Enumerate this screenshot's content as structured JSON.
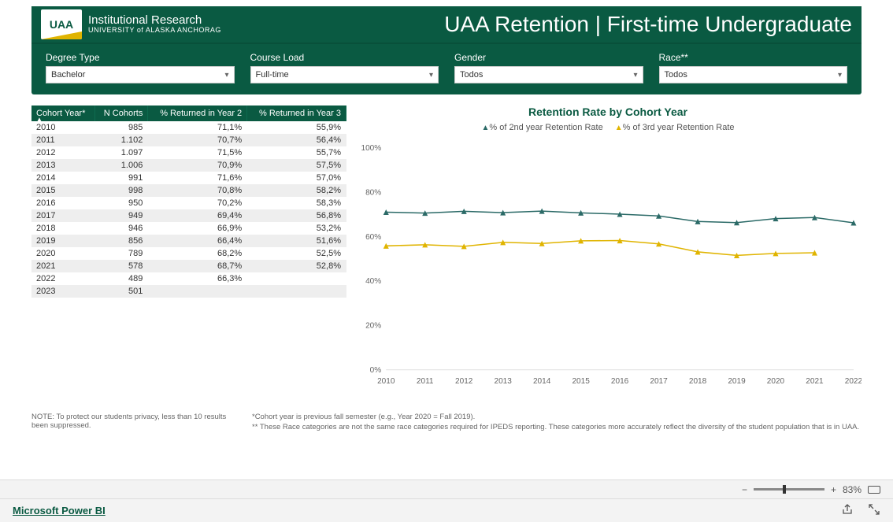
{
  "header": {
    "logo_text": "UAA",
    "logo_line1": "Institutional Research",
    "logo_line2": "UNIVERSITY of ALASKA ANCHORAG",
    "page_title": "UAA Retention | First-time Undergraduate"
  },
  "filters": {
    "degree_type": {
      "label": "Degree Type",
      "value": "Bachelor"
    },
    "course_load": {
      "label": "Course Load",
      "value": "Full-time"
    },
    "gender": {
      "label": "Gender",
      "value": "Todos"
    },
    "race": {
      "label": "Race**",
      "value": "Todos"
    }
  },
  "table": {
    "columns": [
      "Cohort Year*",
      "N Cohorts",
      "% Returned in Year 2",
      "% Returned in Year 3"
    ],
    "rows": [
      [
        "2010",
        "985",
        "71,1%",
        "55,9%"
      ],
      [
        "2011",
        "1.102",
        "70,7%",
        "56,4%"
      ],
      [
        "2012",
        "1.097",
        "71,5%",
        "55,7%"
      ],
      [
        "2013",
        "1.006",
        "70,9%",
        "57,5%"
      ],
      [
        "2014",
        "991",
        "71,6%",
        "57,0%"
      ],
      [
        "2015",
        "998",
        "70,8%",
        "58,2%"
      ],
      [
        "2016",
        "950",
        "70,2%",
        "58,3%"
      ],
      [
        "2017",
        "949",
        "69,4%",
        "56,8%"
      ],
      [
        "2018",
        "946",
        "66,9%",
        "53,2%"
      ],
      [
        "2019",
        "856",
        "66,4%",
        "51,6%"
      ],
      [
        "2020",
        "789",
        "68,2%",
        "52,5%"
      ],
      [
        "2021",
        "578",
        "68,7%",
        "52,8%"
      ],
      [
        "2022",
        "489",
        "66,3%",
        ""
      ],
      [
        "2023",
        "501",
        "",
        ""
      ]
    ]
  },
  "chart": {
    "title": "Retention Rate by Cohort Year",
    "legend": {
      "series1": "% of 2nd year Retention Rate",
      "series2": "% of 3rd year Retention Rate"
    },
    "ylim": [
      0,
      100
    ],
    "yticks": [
      0,
      20,
      40,
      60,
      80,
      100
    ],
    "ytick_labels": [
      "0%",
      "20%",
      "40%",
      "60%",
      "80%",
      "100%"
    ],
    "xticks": [
      "2010",
      "2011",
      "2012",
      "2013",
      "2014",
      "2015",
      "2016",
      "2017",
      "2018",
      "2019",
      "2020",
      "2021",
      "2022"
    ],
    "series": [
      {
        "name": "2nd year",
        "color": "#2b6a67",
        "values": [
          71.1,
          70.7,
          71.5,
          70.9,
          71.6,
          70.8,
          70.2,
          69.4,
          66.9,
          66.4,
          68.2,
          68.7,
          66.3
        ]
      },
      {
        "name": "3rd year",
        "color": "#e0b400",
        "values": [
          55.9,
          56.4,
          55.7,
          57.5,
          57.0,
          58.2,
          58.3,
          56.8,
          53.2,
          51.6,
          52.5,
          52.8
        ]
      }
    ],
    "marker": "triangle",
    "line_width": 1.5,
    "background_color": "#ffffff"
  },
  "footnotes": {
    "privacy": "NOTE:  To protect our students privacy, less than 10 results been suppressed.",
    "cohort_note": "*Cohort year is previous fall semester (e.g., Year 2020 = Fall 2019).",
    "race_note": "** These Race categories are not the same race categories required for IPEDS reporting. These categories more accurately reflect the diversity of the student population that is in UAA."
  },
  "zoom": {
    "percent_label": "83%",
    "percent": 83
  },
  "footer": {
    "brand": "Microsoft Power BI"
  }
}
